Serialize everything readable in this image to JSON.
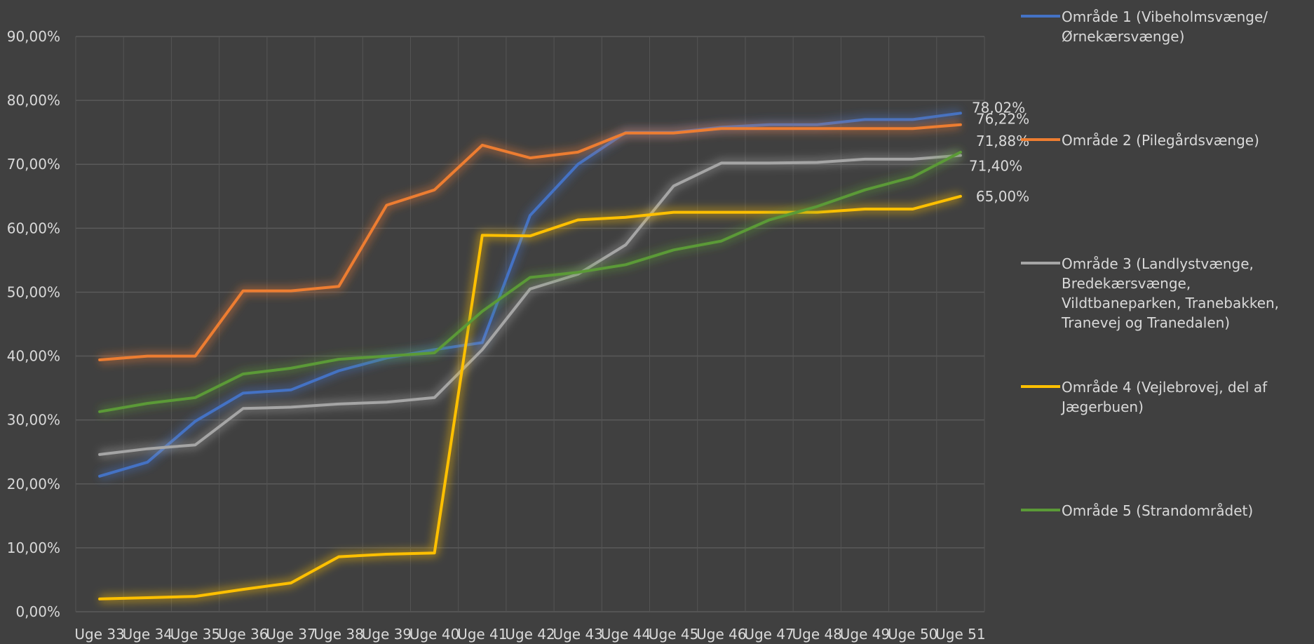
{
  "chart_data": {
    "type": "line",
    "title": "",
    "xlabel": "",
    "ylabel": "",
    "ylim": [
      0,
      0.9
    ],
    "ytick_step": 0.1,
    "y_format": "percent-2dec-comma",
    "grid": true,
    "legend_position": "right",
    "categories": [
      "Uge 33",
      "Uge 34",
      "Uge 35",
      "Uge 36",
      "Uge 37",
      "Uge 38",
      "Uge 39",
      "Uge 40",
      "Uge 41",
      "Uge 42",
      "Uge 43",
      "Uge 44",
      "Uge 45",
      "Uge 46",
      "Uge 47",
      "Uge 48",
      "Uge 49",
      "Uge 50",
      "Uge 51"
    ],
    "yticks": [
      "0,00%",
      "10,00%",
      "20,00%",
      "30,00%",
      "40,00%",
      "50,00%",
      "60,00%",
      "70,00%",
      "80,00%",
      "90,00%"
    ],
    "series": [
      {
        "name": "Område 1 (Vibeholmsvænge/Ørnekærsvænge)",
        "color": "#4472c4",
        "end_label": "78,02%",
        "values": [
          0.212,
          0.234,
          0.298,
          0.342,
          0.347,
          0.377,
          0.397,
          0.41,
          0.421,
          0.62,
          0.7,
          0.75,
          0.75,
          0.758,
          0.762,
          0.762,
          0.77,
          0.77,
          0.78
        ]
      },
      {
        "name": "Område 2 (Pilegårdsvænge)",
        "color": "#ed7d31",
        "end_label": "76,22%",
        "values": [
          0.394,
          0.4,
          0.4,
          0.502,
          0.502,
          0.509,
          0.636,
          0.66,
          0.73,
          0.71,
          0.719,
          0.749,
          0.749,
          0.756,
          0.756,
          0.756,
          0.756,
          0.756,
          0.762
        ]
      },
      {
        "name": "Område 3 (Landlystvænge, Bredekærsvænge, Vildtbaneparken, Tranebakken, Tranevej og Tranedalen)",
        "color": "#a5a5a5",
        "end_label": "71,40%",
        "values": [
          0.246,
          0.255,
          0.261,
          0.318,
          0.32,
          0.325,
          0.328,
          0.335,
          0.41,
          0.505,
          0.528,
          0.574,
          0.666,
          0.702,
          0.702,
          0.703,
          0.708,
          0.708,
          0.714
        ]
      },
      {
        "name": "Område 4 (Vejlebrovej, del af Jægerbuen)",
        "color": "#ffc000",
        "end_label": "65,00%",
        "values": [
          0.02,
          0.022,
          0.024,
          0.035,
          0.045,
          0.086,
          0.09,
          0.092,
          0.589,
          0.588,
          0.613,
          0.617,
          0.625,
          0.625,
          0.625,
          0.625,
          0.63,
          0.63,
          0.65
        ]
      },
      {
        "name": "Område 5 (Strandområdet)",
        "color": "#5b9a37",
        "end_label": "71,88%",
        "values": [
          0.313,
          0.326,
          0.335,
          0.372,
          0.381,
          0.395,
          0.4,
          0.405,
          0.47,
          0.523,
          0.531,
          0.543,
          0.566,
          0.58,
          0.613,
          0.634,
          0.66,
          0.68,
          0.719
        ]
      }
    ]
  }
}
